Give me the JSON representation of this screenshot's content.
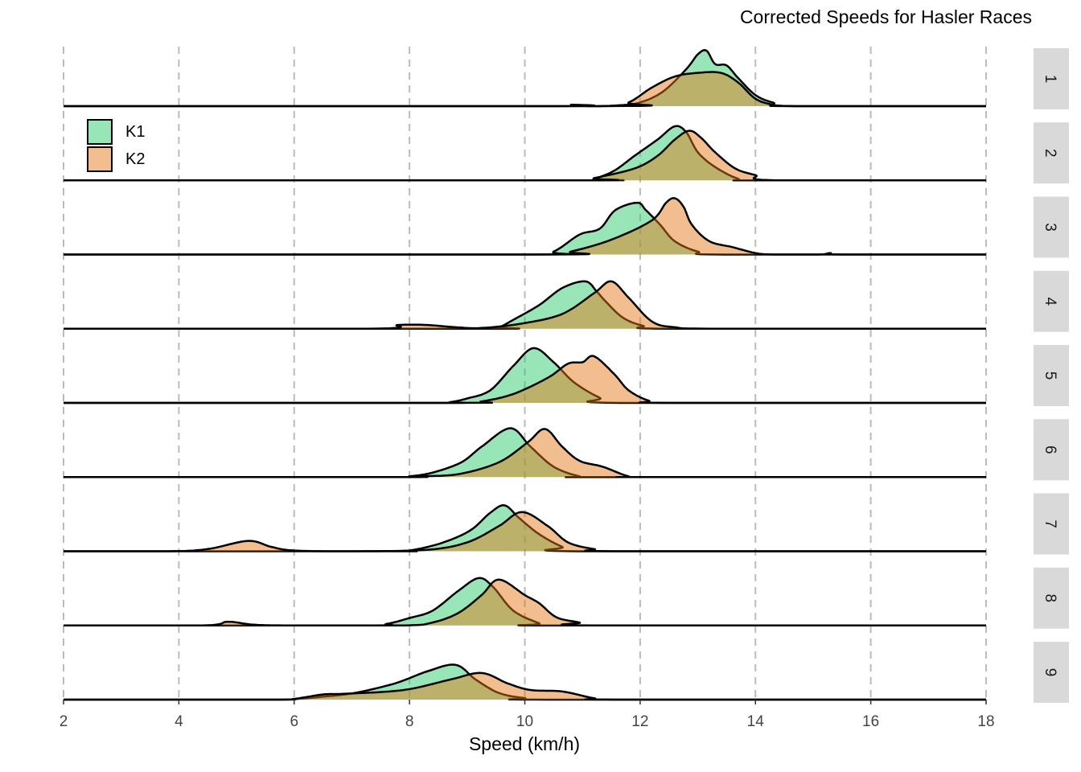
{
  "chart_data": {
    "type": "area",
    "subtype": "ridgeline-density",
    "title": "Corrected Speeds for Hasler Races",
    "xlabel": "Speed (km/h)",
    "ylabel": "",
    "xlim": [
      2,
      18
    ],
    "xticks": [
      2,
      4,
      6,
      8,
      10,
      12,
      14,
      16,
      18
    ],
    "grid": "vertical dashed",
    "legend": {
      "position": "top-left",
      "entries": [
        "K1",
        "K2"
      ]
    },
    "colors": {
      "K1": "#98e6b8",
      "K2": "#f2be90",
      "overlap": "#bcb06c"
    },
    "density_units": "relative height (1 = facet spacing)",
    "facets": [
      {
        "label": "1",
        "series": [
          {
            "name": "K1",
            "points": [
              [
                10.5,
                0
              ],
              [
                10.8,
                0.02
              ],
              [
                11.1,
                0
              ],
              [
                11.6,
                0.01
              ],
              [
                12.0,
                0.05
              ],
              [
                12.4,
                0.2
              ],
              [
                12.8,
                0.5
              ],
              [
                13.0,
                0.7
              ],
              [
                13.15,
                0.75
              ],
              [
                13.3,
                0.57
              ],
              [
                13.5,
                0.55
              ],
              [
                13.7,
                0.38
              ],
              [
                14.0,
                0.15
              ],
              [
                14.3,
                0.05
              ],
              [
                14.7,
                0
              ]
            ]
          },
          {
            "name": "K2",
            "points": [
              [
                11.4,
                0
              ],
              [
                11.8,
                0.05
              ],
              [
                12.2,
                0.25
              ],
              [
                12.6,
                0.4
              ],
              [
                13.0,
                0.45
              ],
              [
                13.4,
                0.45
              ],
              [
                13.7,
                0.32
              ],
              [
                14.0,
                0.1
              ],
              [
                14.3,
                0.02
              ],
              [
                14.6,
                0
              ]
            ]
          }
        ]
      },
      {
        "label": "2",
        "series": [
          {
            "name": "K1",
            "points": [
              [
                11.0,
                0
              ],
              [
                11.2,
                0.02
              ],
              [
                11.55,
                0.13
              ],
              [
                11.9,
                0.33
              ],
              [
                12.3,
                0.55
              ],
              [
                12.6,
                0.73
              ],
              [
                12.8,
                0.65
              ],
              [
                13.0,
                0.38
              ],
              [
                13.3,
                0.18
              ],
              [
                13.7,
                0.02
              ],
              [
                14.0,
                0
              ]
            ]
          },
          {
            "name": "K2",
            "points": [
              [
                10.9,
                0
              ],
              [
                11.2,
                0.03
              ],
              [
                11.9,
                0.16
              ],
              [
                12.3,
                0.33
              ],
              [
                12.6,
                0.55
              ],
              [
                12.85,
                0.67
              ],
              [
                13.05,
                0.58
              ],
              [
                13.3,
                0.38
              ],
              [
                13.65,
                0.16
              ],
              [
                14.0,
                0.07
              ],
              [
                14.35,
                0
              ]
            ]
          }
        ]
      },
      {
        "label": "3",
        "series": [
          {
            "name": "K1",
            "points": [
              [
                10.1,
                0
              ],
              [
                10.5,
                0.04
              ],
              [
                10.95,
                0.27
              ],
              [
                11.3,
                0.35
              ],
              [
                11.57,
                0.6
              ],
              [
                11.95,
                0.7
              ],
              [
                12.1,
                0.6
              ],
              [
                12.35,
                0.4
              ],
              [
                12.6,
                0.18
              ],
              [
                13.0,
                0.04
              ],
              [
                13.45,
                0
              ]
            ]
          },
          {
            "name": "K2",
            "points": [
              [
                10.4,
                0
              ],
              [
                10.8,
                0.04
              ],
              [
                11.5,
                0.2
              ],
              [
                12.2,
                0.46
              ],
              [
                12.45,
                0.7
              ],
              [
                12.6,
                0.76
              ],
              [
                12.75,
                0.65
              ],
              [
                12.9,
                0.4
              ],
              [
                13.2,
                0.18
              ],
              [
                13.6,
                0.1
              ],
              [
                14.0,
                0.02
              ],
              [
                14.3,
                0
              ],
              [
                15.1,
                0
              ],
              [
                15.3,
                0.02
              ],
              [
                15.5,
                0
              ]
            ]
          }
        ]
      },
      {
        "label": "4",
        "series": [
          {
            "name": "K1",
            "points": [
              [
                9.3,
                0
              ],
              [
                9.55,
                0.02
              ],
              [
                9.8,
                0.12
              ],
              [
                10.25,
                0.32
              ],
              [
                10.65,
                0.55
              ],
              [
                11.05,
                0.64
              ],
              [
                11.25,
                0.5
              ],
              [
                11.4,
                0.37
              ],
              [
                11.7,
                0.15
              ],
              [
                12.05,
                0.04
              ],
              [
                12.5,
                0
              ]
            ]
          },
          {
            "name": "K2",
            "points": [
              [
                7.3,
                0
              ],
              [
                7.8,
                0.05
              ],
              [
                8.3,
                0.05
              ],
              [
                8.8,
                0.02
              ],
              [
                9.25,
                0.01
              ],
              [
                9.95,
                0.07
              ],
              [
                10.65,
                0.2
              ],
              [
                11.2,
                0.48
              ],
              [
                11.5,
                0.64
              ],
              [
                11.8,
                0.42
              ],
              [
                12.2,
                0.1
              ],
              [
                12.6,
                0.02
              ],
              [
                13.4,
                0
              ]
            ]
          }
        ]
      },
      {
        "label": "5",
        "series": [
          {
            "name": "K1",
            "points": [
              [
                8.4,
                0
              ],
              [
                8.7,
                0.01
              ],
              [
                9.0,
                0.06
              ],
              [
                9.4,
                0.17
              ],
              [
                9.8,
                0.5
              ],
              [
                10.15,
                0.74
              ],
              [
                10.5,
                0.55
              ],
              [
                10.85,
                0.28
              ],
              [
                11.3,
                0.07
              ],
              [
                11.65,
                0
              ]
            ]
          },
          {
            "name": "K2",
            "points": [
              [
                8.8,
                0
              ],
              [
                9.25,
                0.02
              ],
              [
                9.8,
                0.12
              ],
              [
                10.4,
                0.34
              ],
              [
                10.75,
                0.53
              ],
              [
                11.0,
                0.55
              ],
              [
                11.2,
                0.63
              ],
              [
                11.55,
                0.39
              ],
              [
                11.8,
                0.17
              ],
              [
                12.15,
                0.03
              ],
              [
                12.5,
                0
              ]
            ]
          }
        ]
      },
      {
        "label": "6",
        "series": [
          {
            "name": "K1",
            "points": [
              [
                7.7,
                0
              ],
              [
                8.0,
                0.01
              ],
              [
                8.4,
                0.06
              ],
              [
                8.9,
                0.2
              ],
              [
                9.25,
                0.41
              ],
              [
                9.75,
                0.66
              ],
              [
                10.1,
                0.41
              ],
              [
                10.5,
                0.14
              ],
              [
                10.95,
                0.01
              ],
              [
                11.3,
                0
              ]
            ]
          },
          {
            "name": "K2",
            "points": [
              [
                7.8,
                0
              ],
              [
                8.15,
                0.01
              ],
              [
                8.85,
                0.04
              ],
              [
                9.55,
                0.2
              ],
              [
                10.05,
                0.47
              ],
              [
                10.35,
                0.65
              ],
              [
                10.65,
                0.41
              ],
              [
                10.95,
                0.22
              ],
              [
                11.35,
                0.14
              ],
              [
                11.8,
                0.01
              ],
              [
                12.1,
                0
              ]
            ]
          }
        ]
      },
      {
        "label": "7",
        "series": [
          {
            "name": "K1",
            "points": [
              [
                7.6,
                0
              ],
              [
                8.0,
                0.01
              ],
              [
                8.55,
                0.11
              ],
              [
                9.05,
                0.28
              ],
              [
                9.4,
                0.52
              ],
              [
                9.65,
                0.62
              ],
              [
                9.9,
                0.45
              ],
              [
                10.25,
                0.23
              ],
              [
                10.65,
                0.06
              ],
              [
                10.95,
                0
              ]
            ]
          },
          {
            "name": "K2",
            "points": [
              [
                3.8,
                0
              ],
              [
                4.5,
                0.03
              ],
              [
                5.2,
                0.14
              ],
              [
                5.6,
                0.06
              ],
              [
                6.0,
                0.01
              ],
              [
                7.0,
                0
              ],
              [
                8.3,
                0.02
              ],
              [
                9.0,
                0.12
              ],
              [
                9.55,
                0.34
              ],
              [
                9.95,
                0.53
              ],
              [
                10.4,
                0.34
              ],
              [
                10.75,
                0.12
              ],
              [
                11.2,
                0.03
              ],
              [
                11.65,
                0
              ]
            ]
          }
        ]
      },
      {
        "label": "8",
        "series": [
          {
            "name": "K1",
            "points": [
              [
                7.2,
                0
              ],
              [
                7.6,
                0.02
              ],
              [
                8.0,
                0.1
              ],
              [
                8.4,
                0.2
              ],
              [
                8.85,
                0.47
              ],
              [
                9.2,
                0.64
              ],
              [
                9.45,
                0.52
              ],
              [
                9.8,
                0.2
              ],
              [
                10.25,
                0.03
              ],
              [
                10.5,
                0
              ]
            ]
          },
          {
            "name": "K2",
            "points": [
              [
                4.4,
                0
              ],
              [
                4.85,
                0.05
              ],
              [
                5.3,
                0.01
              ],
              [
                6.0,
                0
              ],
              [
                7.9,
                0
              ],
              [
                8.4,
                0.04
              ],
              [
                8.85,
                0.17
              ],
              [
                9.25,
                0.41
              ],
              [
                9.55,
                0.62
              ],
              [
                10.0,
                0.41
              ],
              [
                10.25,
                0.3
              ],
              [
                10.55,
                0.11
              ],
              [
                10.95,
                0.04
              ],
              [
                11.2,
                0
              ]
            ]
          }
        ]
      },
      {
        "label": "9",
        "series": [
          {
            "name": "K1",
            "points": [
              [
                5.6,
                0
              ],
              [
                6.05,
                0.01
              ],
              [
                6.5,
                0.04
              ],
              [
                7.05,
                0.09
              ],
              [
                7.75,
                0.22
              ],
              [
                8.3,
                0.38
              ],
              [
                8.8,
                0.47
              ],
              [
                9.15,
                0.27
              ],
              [
                9.55,
                0.09
              ],
              [
                10.0,
                0.02
              ],
              [
                10.4,
                0
              ]
            ]
          },
          {
            "name": "K2",
            "points": [
              [
                5.6,
                0
              ],
              [
                6.0,
                0.01
              ],
              [
                6.5,
                0.07
              ],
              [
                6.9,
                0.08
              ],
              [
                7.9,
                0.13
              ],
              [
                8.7,
                0.27
              ],
              [
                9.25,
                0.36
              ],
              [
                9.7,
                0.22
              ],
              [
                10.1,
                0.13
              ],
              [
                10.65,
                0.11
              ],
              [
                11.2,
                0.02
              ],
              [
                11.65,
                0
              ]
            ]
          }
        ]
      }
    ]
  }
}
